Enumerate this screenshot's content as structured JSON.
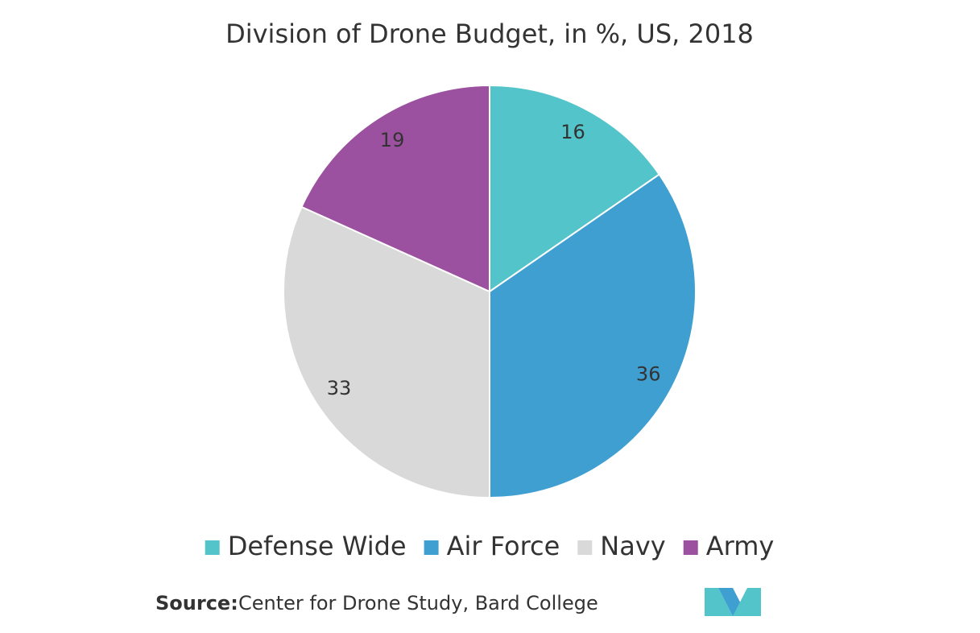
{
  "chart_data": {
    "type": "pie",
    "title": "Division of Drone Budget, in %, US, 2018",
    "categories": [
      "Defense Wide",
      "Air Force",
      "Navy",
      "Army"
    ],
    "values": [
      16,
      36,
      33,
      19
    ],
    "colors": [
      "#53c4ca",
      "#3f9fd1",
      "#d9d9d9",
      "#9b51a0"
    ],
    "legend": "bottom",
    "source_label": "Source:",
    "source": "Center for Drone Study, Bard College"
  }
}
